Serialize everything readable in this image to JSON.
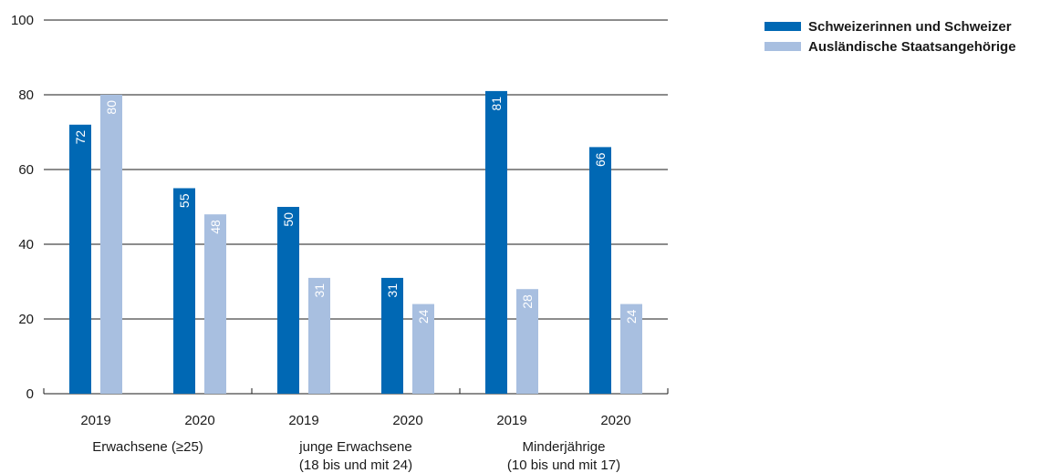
{
  "chart_data": {
    "type": "bar",
    "categories": [
      "2019",
      "2020",
      "2019",
      "2020",
      "2019",
      "2020"
    ],
    "groups": [
      {
        "lines": [
          "Erwachsene (≥25)"
        ]
      },
      {
        "lines": [
          "junge Erwachsene",
          "(18 bis und mit 24)"
        ]
      },
      {
        "lines": [
          "Minderjährige",
          "(10 bis und mit 17)"
        ]
      }
    ],
    "series": [
      {
        "name": "Schweizerinnen und Schweizer",
        "color": "#0068b4",
        "values": [
          72,
          55,
          50,
          31,
          81,
          66
        ]
      },
      {
        "name": "Ausländische Staatsangehörige",
        "color": "#a8bfe0",
        "values": [
          80,
          48,
          31,
          24,
          28,
          24
        ]
      }
    ],
    "ylim": [
      0,
      100
    ],
    "yticks": [
      0,
      20,
      40,
      60,
      80,
      100
    ],
    "grid": true,
    "legend": "top-right"
  }
}
